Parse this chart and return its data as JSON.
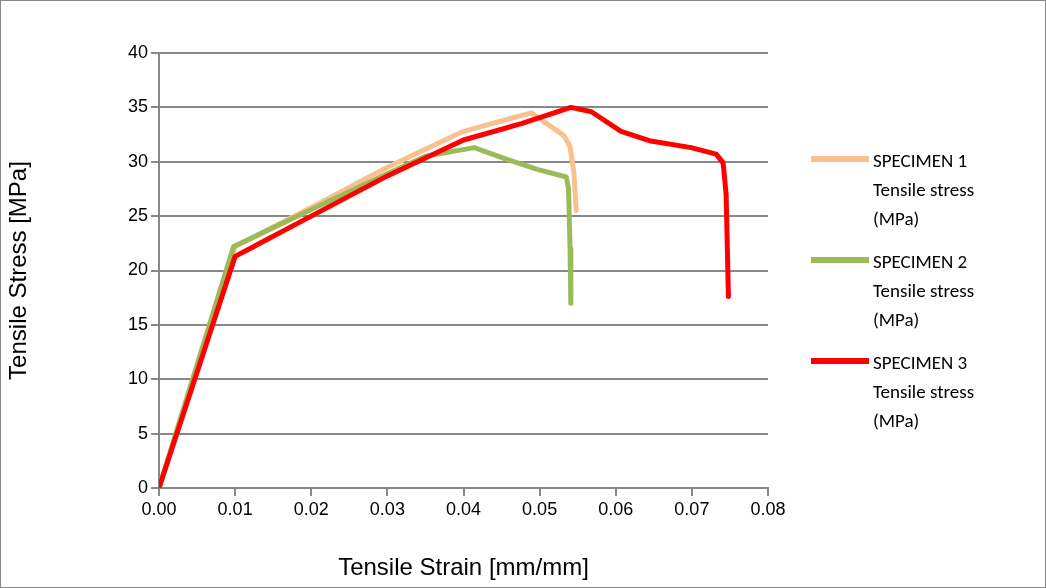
{
  "chart_data": {
    "type": "line",
    "xlabel": "Tensile Strain [mm/mm]",
    "ylabel": "Tensile Stress [MPa]",
    "xlim": [
      0,
      0.08
    ],
    "xticks": [
      {
        "value": 0,
        "label": "0.00"
      },
      {
        "value": 0.01,
        "label": "0.01"
      },
      {
        "value": 0.02,
        "label": "0.02"
      },
      {
        "value": 0.03,
        "label": "0.03"
      },
      {
        "value": 0.04,
        "label": "0.04"
      },
      {
        "value": 0.05,
        "label": "0.05"
      },
      {
        "value": 0.06,
        "label": "0.06"
      },
      {
        "value": 0.07,
        "label": "0.07"
      },
      {
        "value": 0.08,
        "label": "0.08"
      }
    ],
    "ylim": [
      0,
      40
    ],
    "yticks": [
      0,
      5,
      10,
      15,
      20,
      25,
      30,
      35,
      40
    ],
    "grid": "y",
    "legend": "right",
    "marker": "none",
    "line_style": "solid",
    "series": [
      {
        "name": "SPECIMEN 1 Tensile stress (MPa)",
        "color": "#fac090",
        "x": [
          0,
          0.01,
          0.02,
          0.03,
          0.04,
          0.0489,
          0.0532,
          0.054,
          0.0545,
          0.0548
        ],
        "values": [
          0,
          22.2,
          25.8,
          29.5,
          32.8,
          34.5,
          32.4,
          31.4,
          29,
          25.5
        ]
      },
      {
        "name": "SPECIMEN 2 Tensile stress (MPa)",
        "color": "#9bbb59",
        "x": [
          0,
          0.0098,
          0.02,
          0.03,
          0.035,
          0.0414,
          0.0458,
          0.0497,
          0.0535,
          0.0538,
          0.054,
          0.0541
        ],
        "values": [
          0,
          22.2,
          25.6,
          28.9,
          30.5,
          31.3,
          30.2,
          29.3,
          28.6,
          27.5,
          22,
          17
        ]
      },
      {
        "name": "SPECIMEN 3 Tensile stress (MPa)",
        "color": "#ff0000",
        "x": [
          0,
          0.01,
          0.02,
          0.03,
          0.04,
          0.0476,
          0.0541,
          0.0568,
          0.0607,
          0.0646,
          0.0699,
          0.0732,
          0.0741,
          0.0745,
          0.0748
        ],
        "values": [
          0,
          21.3,
          25,
          28.7,
          32,
          33.5,
          35,
          34.6,
          32.8,
          31.9,
          31.3,
          30.7,
          29.9,
          27,
          17.6
        ]
      }
    ]
  }
}
